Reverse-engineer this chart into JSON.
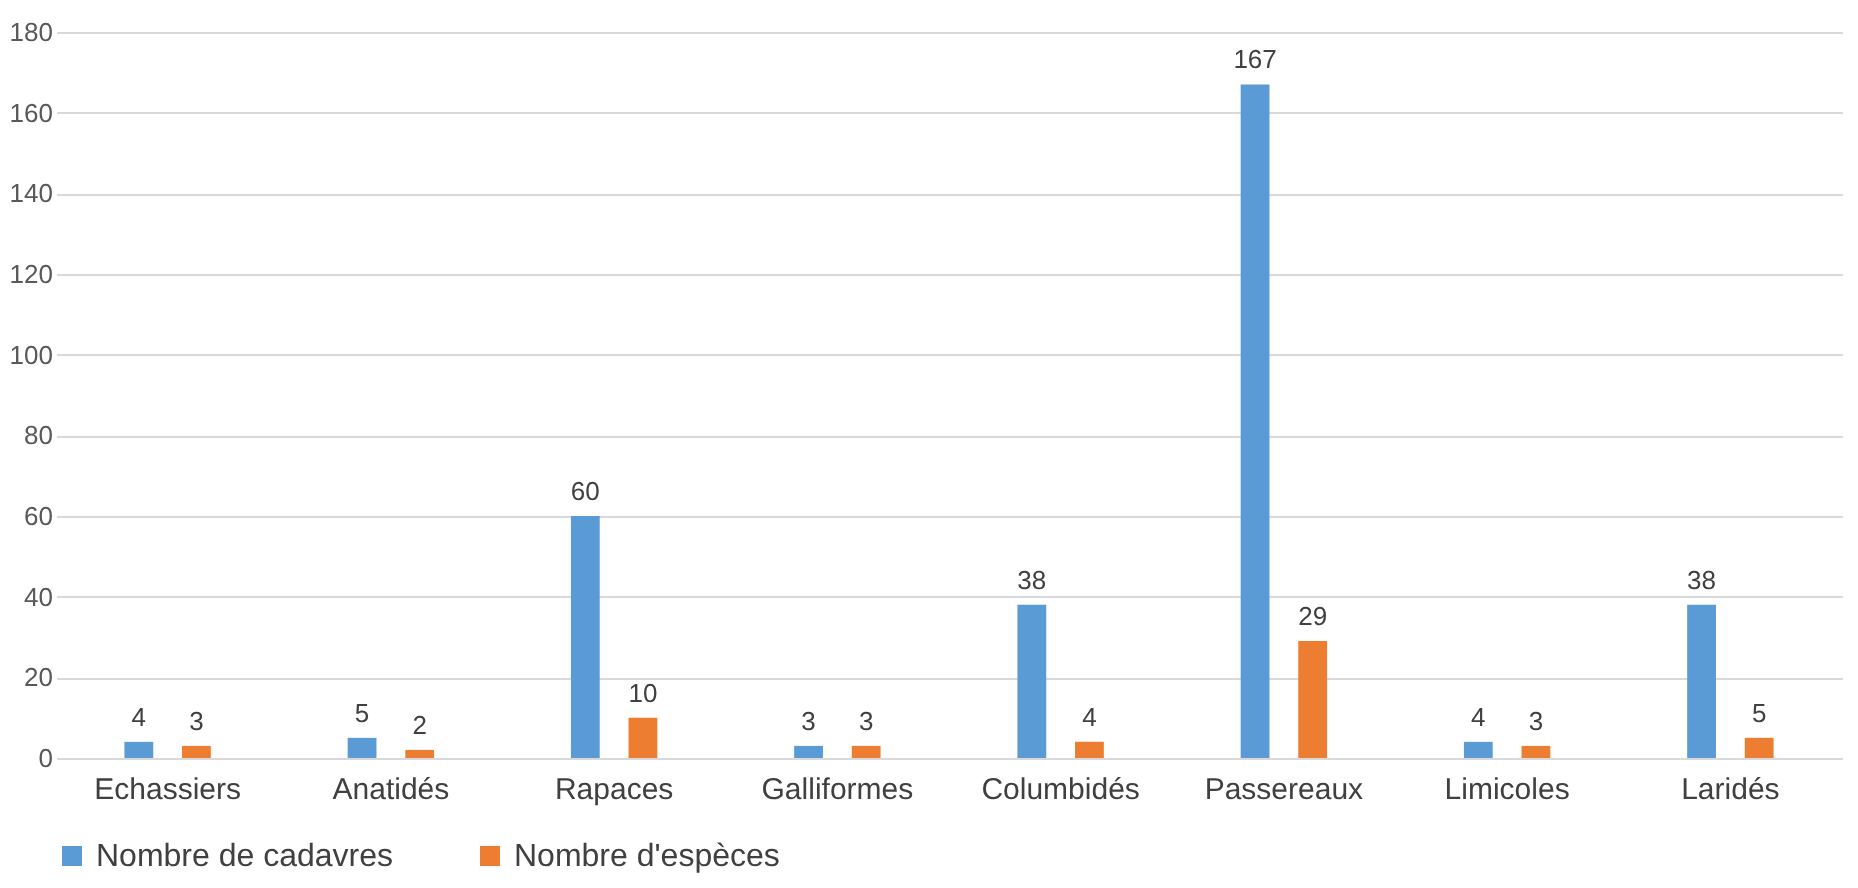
{
  "chart_data": {
    "type": "bar",
    "categories": [
      "Echassiers",
      "Anatidés",
      "Rapaces",
      "Galliformes",
      "Columbidés",
      "Passereaux",
      "Limicoles",
      "Laridés"
    ],
    "series": [
      {
        "name": "Nombre de cadavres",
        "color": "#5b9bd5",
        "values": [
          4,
          5,
          60,
          3,
          38,
          167,
          4,
          38
        ]
      },
      {
        "name": "Nombre d'espèces",
        "color": "#ed7d31",
        "values": [
          3,
          2,
          10,
          3,
          4,
          29,
          3,
          5
        ]
      }
    ],
    "ylim": [
      0,
      180
    ],
    "yticks": [
      0,
      20,
      40,
      60,
      80,
      100,
      120,
      140,
      160,
      180
    ],
    "grid": "y",
    "legend": "bottom",
    "data_labels": true
  }
}
